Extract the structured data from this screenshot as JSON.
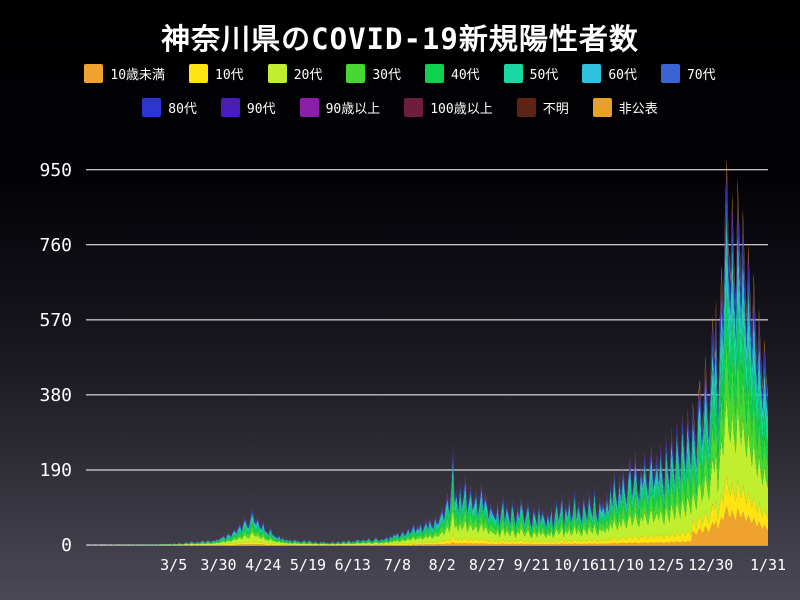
{
  "colors": {
    "background_top": "#000000",
    "background_bottom": "#4b4956",
    "text": "#ffffff",
    "gridline": "#ffffff"
  },
  "chart_data": {
    "type": "bar",
    "stacked": true,
    "title": "神奈川県のCOVID-19新規陽性者数",
    "xlabel": "",
    "ylabel": "",
    "ylim": [
      0,
      1000
    ],
    "yticks": [
      0,
      190,
      380,
      570,
      760,
      950
    ],
    "grid": true,
    "legend_position": "top",
    "x_ticks": [
      {
        "label": "3/5",
        "index": 49
      },
      {
        "label": "3/30",
        "index": 74
      },
      {
        "label": "4/24",
        "index": 99
      },
      {
        "label": "5/19",
        "index": 124
      },
      {
        "label": "6/13",
        "index": 149
      },
      {
        "label": "7/8",
        "index": 174
      },
      {
        "label": "8/2",
        "index": 199
      },
      {
        "label": "8/27",
        "index": 224
      },
      {
        "label": "9/21",
        "index": 249
      },
      {
        "label": "10/16",
        "index": 274
      },
      {
        "label": "11/10",
        "index": 299
      },
      {
        "label": "12/5",
        "index": 324
      },
      {
        "label": "12/30",
        "index": 349
      },
      {
        "label": "1/31",
        "index": 381
      }
    ],
    "legend_rows": [
      [
        0,
        1,
        2,
        3,
        4,
        5,
        6,
        7
      ],
      [
        8,
        9,
        10,
        11,
        12,
        13
      ]
    ],
    "groups": [
      {
        "key": "under10",
        "name": "10歳未満",
        "color": "#f0a22e",
        "share": 0.03,
        "share_late": 0.1
      },
      {
        "key": "10s",
        "name": "10代",
        "color": "#ffe414",
        "share": 0.08,
        "share_late": 0.08
      },
      {
        "key": "20s",
        "name": "20代",
        "color": "#bfef2e",
        "share": 0.25,
        "share_late": 0.2
      },
      {
        "key": "30s",
        "name": "30代",
        "color": "#46d732",
        "share": 0.17,
        "share_late": 0.15
      },
      {
        "key": "40s",
        "name": "40代",
        "color": "#0fd150",
        "share": 0.15,
        "share_late": 0.13
      },
      {
        "key": "50s",
        "name": "50代",
        "color": "#19d8a4",
        "share": 0.11,
        "share_late": 0.11
      },
      {
        "key": "60s",
        "name": "60代",
        "color": "#2fc2dd",
        "share": 0.08,
        "share_late": 0.08
      },
      {
        "key": "70s",
        "name": "70代",
        "color": "#3a63d4",
        "share": 0.05,
        "share_late": 0.05
      },
      {
        "key": "80s",
        "name": "80代",
        "color": "#2c36cf",
        "share": 0.04,
        "share_late": 0.04
      },
      {
        "key": "90s",
        "name": "90代",
        "color": "#4a1cba",
        "share": 0.02,
        "share_late": 0.02
      },
      {
        "key": "90plus",
        "name": "90歳以上",
        "color": "#8c1fa8",
        "share": 0.008,
        "share_late": 0.01
      },
      {
        "key": "100plus",
        "name": "100歳以上",
        "color": "#6e1d3e",
        "share": 0.001,
        "share_late": 0.001
      },
      {
        "key": "unknown",
        "name": "不明",
        "color": "#5e2315",
        "share": 0.001,
        "share_late": 0.004
      },
      {
        "key": "undisclosed",
        "name": "非公表",
        "color": "#e8a126",
        "share": 0.01,
        "share_late": 0.025
      }
    ],
    "late_start_index": 339,
    "totals": [
      1,
      0,
      0,
      1,
      0,
      0,
      0,
      1,
      0,
      0,
      0,
      0,
      1,
      0,
      0,
      1,
      0,
      1,
      0,
      0,
      2,
      0,
      1,
      0,
      0,
      1,
      0,
      2,
      1,
      0,
      1,
      3,
      0,
      1,
      2,
      1,
      0,
      2,
      1,
      3,
      1,
      2,
      4,
      2,
      3,
      3,
      2,
      4,
      1,
      5,
      3,
      2,
      6,
      4,
      3,
      5,
      8,
      4,
      6,
      10,
      7,
      5,
      9,
      6,
      8,
      12,
      9,
      7,
      14,
      10,
      8,
      13,
      11,
      16,
      12,
      18,
      20,
      25,
      16,
      30,
      28,
      22,
      35,
      40,
      32,
      45,
      55,
      38,
      60,
      70,
      52,
      48,
      75,
      90,
      65,
      58,
      72,
      50,
      44,
      62,
      39,
      35,
      28,
      46,
      30,
      25,
      22,
      18,
      25,
      14,
      20,
      12,
      16,
      10,
      15,
      8,
      12,
      14,
      9,
      11,
      7,
      10,
      13,
      6,
      9,
      12,
      8,
      5,
      10,
      7,
      4,
      8,
      6,
      9,
      5,
      7,
      4,
      6,
      9,
      4,
      7,
      10,
      5,
      8,
      12,
      6,
      9,
      14,
      7,
      10,
      8,
      12,
      15,
      9,
      11,
      16,
      10,
      13,
      18,
      12,
      9,
      15,
      20,
      14,
      11,
      17,
      13,
      16,
      22,
      12,
      25,
      18,
      30,
      24,
      35,
      20,
      28,
      38,
      26,
      32,
      45,
      30,
      40,
      55,
      34,
      48,
      42,
      58,
      36,
      50,
      64,
      44,
      70,
      52,
      46,
      76,
      58,
      62,
      80,
      95,
      70,
      110,
      130,
      88,
      155,
      250,
      120,
      140,
      95,
      160,
      105,
      135,
      180,
      90,
      125,
      150,
      100,
      115,
      140,
      85,
      120,
      160,
      95,
      130,
      110,
      75,
      105,
      90,
      80,
      70,
      110,
      55,
      95,
      125,
      65,
      105,
      85,
      60,
      115,
      90,
      50,
      100,
      75,
      120,
      95,
      60,
      85,
      110,
      70,
      45,
      95,
      80,
      55,
      105,
      65,
      90,
      75,
      50,
      85,
      60,
      100,
      45,
      85,
      115,
      70,
      95,
      130,
      55,
      105,
      80,
      120,
      65,
      90,
      140,
      75,
      110,
      85,
      60,
      125,
      95,
      70,
      135,
      100,
      80,
      150,
      90,
      65,
      120,
      95,
      110,
      85,
      130,
      95,
      160,
      110,
      190,
      140,
      105,
      175,
      125,
      200,
      150,
      115,
      185,
      220,
      135,
      170,
      240,
      155,
      125,
      205,
      165,
      235,
      180,
      140,
      215,
      250,
      160,
      190,
      230,
      170,
      255,
      190,
      140,
      280,
      210,
      160,
      295,
      235,
      175,
      310,
      250,
      185,
      330,
      270,
      200,
      345,
      285,
      215,
      360,
      300,
      230,
      380,
      420,
      290,
      340,
      480,
      390,
      295,
      440,
      580,
      480,
      620,
      350,
      560,
      710,
      590,
      840,
      980,
      760,
      680,
      890,
      720,
      610,
      930,
      790,
      660,
      850,
      700,
      580,
      760,
      640,
      520,
      690,
      560,
      450,
      600,
      480,
      400,
      520,
      430,
      380
    ]
  }
}
